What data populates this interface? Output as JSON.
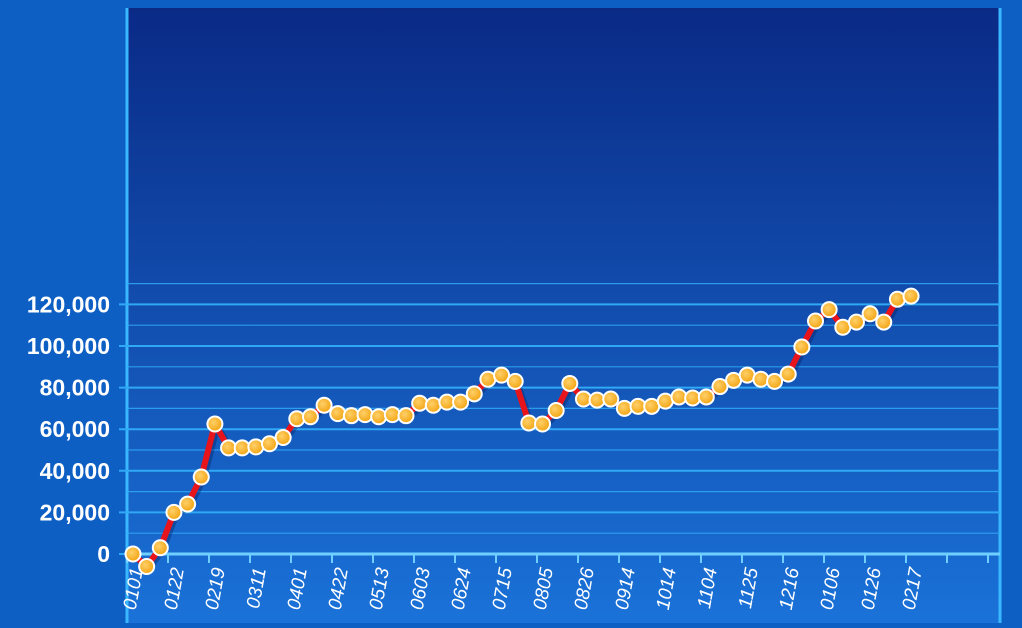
{
  "chart_data": {
    "type": "line",
    "title": "",
    "xlabel": "",
    "ylabel": "",
    "ylim": [
      -6000,
      130000
    ],
    "yticks": [
      0,
      20000,
      40000,
      60000,
      80000,
      100000,
      120000
    ],
    "ytick_labels": [
      "0",
      "20,000",
      "40,000",
      "60,000",
      "80,000",
      "100,000",
      "120,000"
    ],
    "xtick_labels": [
      "0101",
      "0122",
      "0219",
      "0311",
      "0401",
      "0422",
      "0513",
      "0603",
      "0624",
      "0715",
      "0805",
      "0826",
      "0914",
      "1014",
      "1104",
      "1125",
      "1216",
      "0106",
      "0126",
      "0217"
    ],
    "grid": true,
    "legend": "none",
    "colors": {
      "background_top": "#0a2a86",
      "background_bottom": "#1a72d8",
      "line": "#e8141c",
      "marker_fill": "#f3a512",
      "marker_stroke": "#ffffff",
      "gridline": "#2fa9f5",
      "tick_text": "#ffffff"
    },
    "series": [
      {
        "values": [
          0,
          -6000,
          3000,
          20000,
          24000,
          37000,
          62500,
          51000,
          51000,
          51500,
          53000,
          56000,
          65000,
          66000,
          71500,
          67500,
          66500,
          67000,
          66000,
          67000,
          66500,
          72500,
          71500,
          73000,
          73000,
          77000,
          84000,
          86000,
          83000,
          63000,
          62500,
          69000,
          82000,
          74500,
          74000,
          74500,
          70000,
          71000,
          71000,
          73500,
          75500,
          75000,
          75500,
          80500,
          83500,
          86000,
          84000,
          83000,
          86500,
          99500,
          112000,
          117500,
          109000,
          111500,
          115500,
          111500,
          122500,
          124000
        ]
      }
    ]
  }
}
